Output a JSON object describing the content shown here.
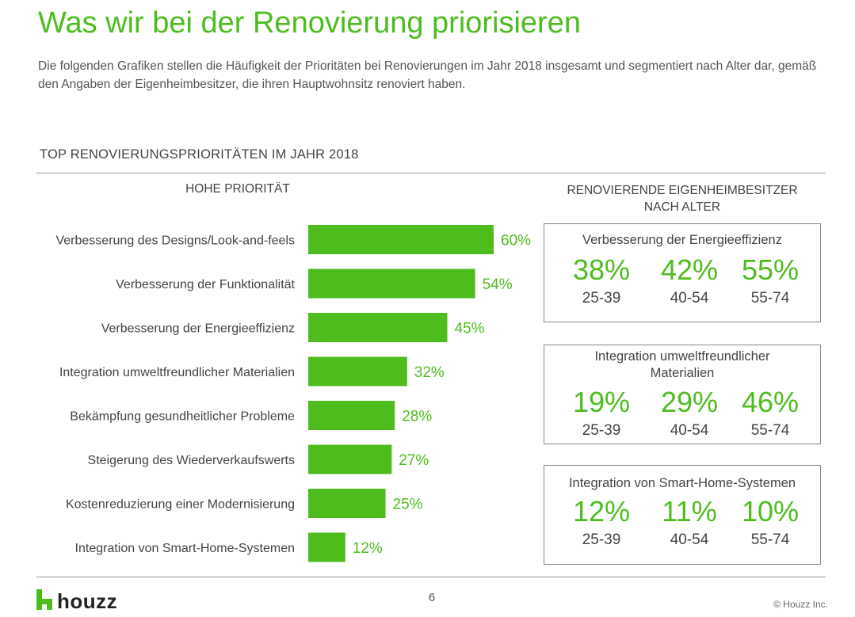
{
  "header": {
    "title": "Was wir bei der Renovierung priorisieren",
    "subtitle": "Die folgenden Grafiken stellen die Häufigkeit der Prioritäten bei Renovierungen im Jahr 2018 insgesamt und segmentiert nach Alter dar, gemäß den Angaben der Eigenheimbesitzer, die ihren Hauptwohnsitz renoviert haben."
  },
  "section_title": "TOP RENOVIERUNGSPRIORITÄTEN IM JAHR 2018",
  "left_column_header": "HOHE PRIORITÄT",
  "right_column_header": "RENOVIERENDE EIGENHEIMBESITZER NACH ALTER",
  "colors": {
    "accent": "#4dbd1e",
    "text": "#444444",
    "border": "#888888"
  },
  "chart_data": [
    {
      "type": "bar",
      "orientation": "horizontal",
      "title": "HOHE PRIORITÄT",
      "categories": [
        "Verbesserung des Designs/Look-and-feels",
        "Verbesserung der Funktionalität",
        "Verbesserung der Energieeffizienz",
        "Integration umweltfreundlicher Materialien",
        "Bekämpfung gesundheitlicher Probleme",
        "Steigerung des Wiederverkaufswerts",
        "Kostenreduzierung einer Modernisierung",
        "Integration von Smart-Home-Systemen"
      ],
      "values": [
        60,
        54,
        45,
        32,
        28,
        27,
        25,
        12
      ],
      "value_labels": [
        "60%",
        "54%",
        "45%",
        "32%",
        "28%",
        "27%",
        "25%",
        "12%"
      ],
      "xlim": [
        0,
        100
      ],
      "grid": false
    },
    {
      "type": "table",
      "title": "RENOVIERENDE EIGENHEIMBESITZER NACH ALTER",
      "columns": [
        "25-39",
        "40-54",
        "55-74"
      ],
      "rows": [
        {
          "name": "Verbesserung der Energieeffizienz",
          "values": [
            38,
            42,
            55
          ],
          "labels": [
            "38%",
            "42%",
            "55%"
          ]
        },
        {
          "name": "Integration umweltfreundlicher Materialien",
          "values": [
            19,
            29,
            46
          ],
          "labels": [
            "19%",
            "29%",
            "46%"
          ]
        },
        {
          "name": "Integration von Smart-Home-Systemen",
          "values": [
            12,
            11,
            10
          ],
          "labels": [
            "12%",
            "11%",
            "10%"
          ]
        }
      ]
    }
  ],
  "boxes": [
    {
      "title": "Verbesserung der Energieeffizienz",
      "stats": [
        {
          "pct": "38%",
          "age": "25-39"
        },
        {
          "pct": "42%",
          "age": "40-54"
        },
        {
          "pct": "55%",
          "age": "55-74"
        }
      ]
    },
    {
      "title": "Integration umweltfreundlicher Materialien",
      "stats": [
        {
          "pct": "19%",
          "age": "25-39"
        },
        {
          "pct": "29%",
          "age": "40-54"
        },
        {
          "pct": "46%",
          "age": "55-74"
        }
      ]
    },
    {
      "title": "Integration von Smart-Home-Systemen",
      "stats": [
        {
          "pct": "12%",
          "age": "25-39"
        },
        {
          "pct": "11%",
          "age": "40-54"
        },
        {
          "pct": "10%",
          "age": "55-74"
        }
      ]
    }
  ],
  "footer": {
    "logo_text": "houzz",
    "logo_icon": "houzz-h-icon",
    "page_number": "6",
    "copyright": "© Houzz Inc."
  }
}
